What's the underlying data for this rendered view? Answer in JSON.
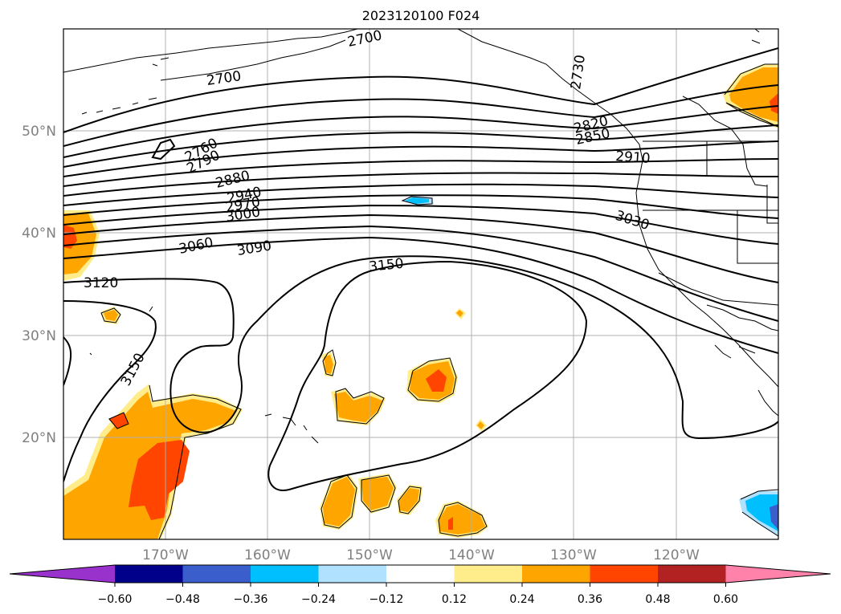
{
  "title": "2023120100 F024",
  "latitude_labels": [
    "50°N",
    "40°N",
    "30°N",
    "20°N"
  ],
  "longitude_labels": [
    "170°W",
    "160°W",
    "150°W",
    "140°W",
    "130°W",
    "120°W"
  ],
  "contour_labels": [
    "2700",
    "2700",
    "2730",
    "2760",
    "2790",
    "2820",
    "2850",
    "2880",
    "2910",
    "2940",
    "2970",
    "3000",
    "3030",
    "3060",
    "3090",
    "3120",
    "3150",
    "3150"
  ],
  "colorbar": {
    "ticks": [
      "−0.60",
      "−0.48",
      "−0.36",
      "−0.24",
      "−0.12",
      "0.12",
      "0.24",
      "0.36",
      "0.48",
      "0.60"
    ],
    "colors": [
      "#9932cc",
      "#00008b",
      "#3a5fcd",
      "#00bfff",
      "#b0e2ff",
      "#ffffff",
      "#ffec8b",
      "#ffa500",
      "#ff4500",
      "#b22222",
      "#ff82ab"
    ]
  },
  "colors": {
    "grid": "#b0b0b0",
    "contour": "#000000",
    "tick_text": "#808080"
  }
}
